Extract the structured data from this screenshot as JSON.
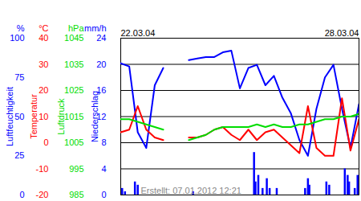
{
  "chart_data": {
    "type": "line",
    "annotation": "Erstellt: 07.01.2012 12:21",
    "grid": true,
    "x": [
      0,
      6,
      12,
      18,
      24,
      30,
      36,
      42,
      48,
      54,
      60,
      66,
      72,
      78,
      84,
      90,
      96,
      102,
      108,
      114,
      120,
      126,
      132,
      138,
      144,
      150,
      156,
      162,
      168
    ],
    "xlim": [
      0,
      168
    ],
    "xticks": [
      {
        "value": 0,
        "label": "22.03.04"
      },
      {
        "value": 168,
        "label": "28.03.04"
      }
    ],
    "series": [
      {
        "name": "Luftfeuchtigkeit",
        "unit": "%",
        "type": "line",
        "color": "#0000ff",
        "ylim": [
          0,
          100
        ],
        "yticks": [
          0,
          25,
          50,
          75,
          100
        ],
        "values": [
          84,
          82,
          40,
          30,
          70,
          81,
          null,
          null,
          86,
          87,
          88,
          88,
          91,
          92,
          68,
          81,
          83,
          70,
          76,
          62,
          52,
          35,
          25,
          55,
          75,
          83,
          55,
          30,
          58
        ]
      },
      {
        "name": "Temperatur",
        "unit": "°C",
        "type": "line",
        "color": "#ff0000",
        "ylim": [
          -20,
          40
        ],
        "yticks": [
          -20,
          -10,
          0,
          10,
          20,
          30,
          40
        ],
        "values": [
          4,
          5,
          14,
          5,
          2,
          1,
          null,
          null,
          2,
          2,
          3,
          5,
          6,
          3,
          1,
          5,
          1,
          4,
          5,
          2,
          -1,
          -4,
          14,
          -2,
          -5,
          -5,
          17,
          -3,
          9
        ]
      },
      {
        "name": "Luftdruck",
        "unit": "hPa",
        "type": "line",
        "color": "#00dd00",
        "ylim": [
          985,
          1045
        ],
        "yticks": [
          985,
          995,
          1005,
          1015,
          1025,
          1035,
          1045
        ],
        "values": [
          1014,
          1014,
          1013,
          1012,
          1011,
          1010,
          null,
          null,
          1006,
          1007,
          1008,
          1010,
          1011,
          1011,
          1011,
          1011,
          1012,
          1011,
          1012,
          1011,
          1011,
          1012,
          1012,
          1013,
          1014,
          1014,
          1015,
          1015,
          1016
        ]
      },
      {
        "name": "Niederschlag",
        "unit": "mm/h",
        "type": "bar",
        "color": "#0000ff",
        "ylim": [
          0,
          24
        ],
        "yticks": [
          0,
          4,
          8,
          12,
          16,
          20,
          24
        ],
        "x": [
          1,
          3,
          10,
          12,
          51,
          94,
          95,
          97,
          100,
          103,
          105,
          110,
          130,
          132,
          133,
          145,
          147,
          158,
          160,
          161,
          165,
          167
        ],
        "values": [
          1,
          0.5,
          2,
          1.5,
          0.5,
          6.5,
          2,
          3,
          1,
          2.5,
          1,
          1,
          1,
          2.5,
          1.5,
          2,
          1.5,
          4,
          3,
          2,
          1,
          3
        ]
      }
    ]
  }
}
